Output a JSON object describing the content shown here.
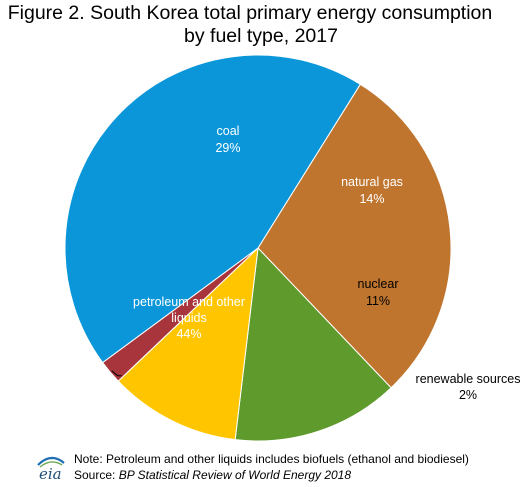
{
  "figure": {
    "title_line1": "Figure 2. South Korea total primary energy consumption",
    "title_line2": "by fuel type, 2017",
    "note": "Note: Petroleum and other liquids includes biofuels (ethanol and biodiesel)",
    "source_prefix": "Source: ",
    "source_name": "BP Statistical Review of World Energy 2018",
    "logo_text": "eia"
  },
  "chart_data": {
    "type": "pie",
    "title": "Figure 2. South Korea total primary energy consumption by fuel type, 2017",
    "slices": [
      {
        "label": "coal",
        "pct_label": "29%",
        "value": 29,
        "color": "#bf752e"
      },
      {
        "label": "natural gas",
        "pct_label": "14%",
        "value": 14,
        "color": "#5f9a2c"
      },
      {
        "label": "nuclear",
        "pct_label": "11%",
        "value": 11,
        "color": "#ffc600"
      },
      {
        "label": "renewable sources",
        "pct_label": "2%",
        "value": 2,
        "color": "#a8343c"
      },
      {
        "label": "petroleum and other liquids",
        "pct_label": "44%",
        "value": 44,
        "color": "#0a96d9"
      }
    ]
  }
}
